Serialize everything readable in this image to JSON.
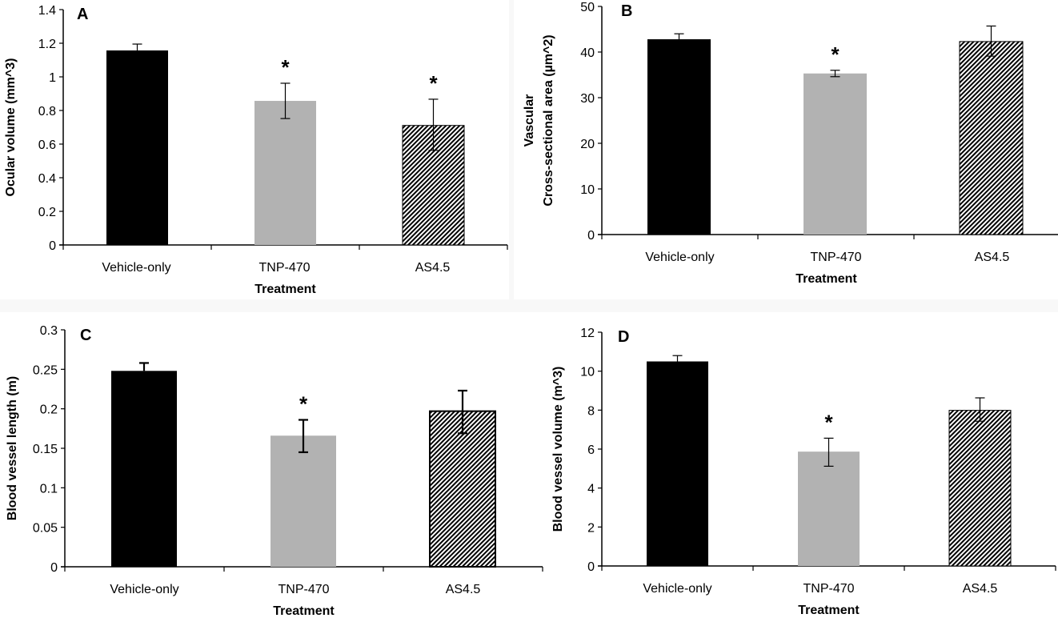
{
  "figure": {
    "colors": {
      "vehicle": "#000000",
      "tnp470": "#b2b2b2",
      "as45_hatch_fg": "#000000",
      "as45_hatch_bg": "#ffffff"
    }
  },
  "chart_data": [
    {
      "panel": "A",
      "type": "bar",
      "title": "",
      "categories": [
        "Vehicle-only",
        "TNP-470",
        "AS4.5"
      ],
      "values": [
        1.157,
        0.857,
        0.711
      ],
      "error_high": [
        1.195,
        0.962,
        0.867
      ],
      "error_low": [
        1.157,
        0.752,
        0.563
      ],
      "significance": [
        "",
        "*",
        "*"
      ],
      "xlabel": "Treatment",
      "ylabel": "Ocular volume (mm^3)",
      "ylim": [
        0,
        1.4
      ],
      "yticks": [
        0,
        0.2,
        0.4,
        0.6,
        0.8,
        1,
        1.2,
        1.4
      ],
      "ytick_labels": [
        "0",
        "0.2",
        "0.4",
        "0.6",
        "0.8",
        "1",
        "1.2",
        "1.4"
      ],
      "grid": false,
      "legend": "none"
    },
    {
      "panel": "B",
      "type": "bar",
      "title": "",
      "categories": [
        "Vehicle-only",
        "TNP-470",
        "AS4.5"
      ],
      "values": [
        42.8,
        35.3,
        42.3
      ],
      "error_high": [
        44.0,
        36.0,
        45.7
      ],
      "error_low": [
        42.8,
        34.6,
        39.1
      ],
      "significance": [
        "",
        "*",
        ""
      ],
      "xlabel": "Treatment",
      "ylabel_line1": "Vascular",
      "ylabel_line2": "Cross-sectional area (µm^2)",
      "ylim": [
        0,
        50
      ],
      "yticks": [
        0,
        10,
        20,
        30,
        40,
        50
      ],
      "ytick_labels": [
        "0",
        "10",
        "20",
        "30",
        "40",
        "50"
      ],
      "grid": false,
      "legend": "none"
    },
    {
      "panel": "C",
      "type": "bar",
      "title": "",
      "categories": [
        "Vehicle-only",
        "TNP-470",
        "AS4.5"
      ],
      "values": [
        0.248,
        0.166,
        0.197
      ],
      "error_high": [
        0.258,
        0.186,
        0.223
      ],
      "error_low": [
        0.248,
        0.145,
        0.169
      ],
      "significance": [
        "",
        "*",
        ""
      ],
      "xlabel": "Treatment",
      "ylabel": "Blood vessel length (m)",
      "ylim": [
        0,
        0.3
      ],
      "yticks": [
        0,
        0.05,
        0.1,
        0.15,
        0.2,
        0.25,
        0.3
      ],
      "ytick_labels": [
        "0",
        "0.05",
        "0.1",
        "0.15",
        "0.2",
        "0.25",
        "0.3"
      ],
      "grid": false,
      "legend": "none"
    },
    {
      "panel": "D",
      "type": "bar",
      "title": "",
      "categories": [
        "Vehicle-only",
        "TNP-470",
        "AS4.5"
      ],
      "values": [
        10.5,
        5.87,
        7.99
      ],
      "error_high": [
        10.8,
        6.56,
        8.63
      ],
      "error_low": [
        10.5,
        5.12,
        7.43
      ],
      "significance": [
        "",
        "*",
        ""
      ],
      "xlabel": "Treatment",
      "ylabel": "Blood vessel volume (m^3)",
      "ylim": [
        0,
        12
      ],
      "yticks": [
        0,
        2,
        4,
        6,
        8,
        10,
        12
      ],
      "ytick_labels": [
        "0",
        "2",
        "4",
        "6",
        "8",
        "10",
        "12"
      ],
      "grid": false,
      "legend": "none"
    }
  ]
}
